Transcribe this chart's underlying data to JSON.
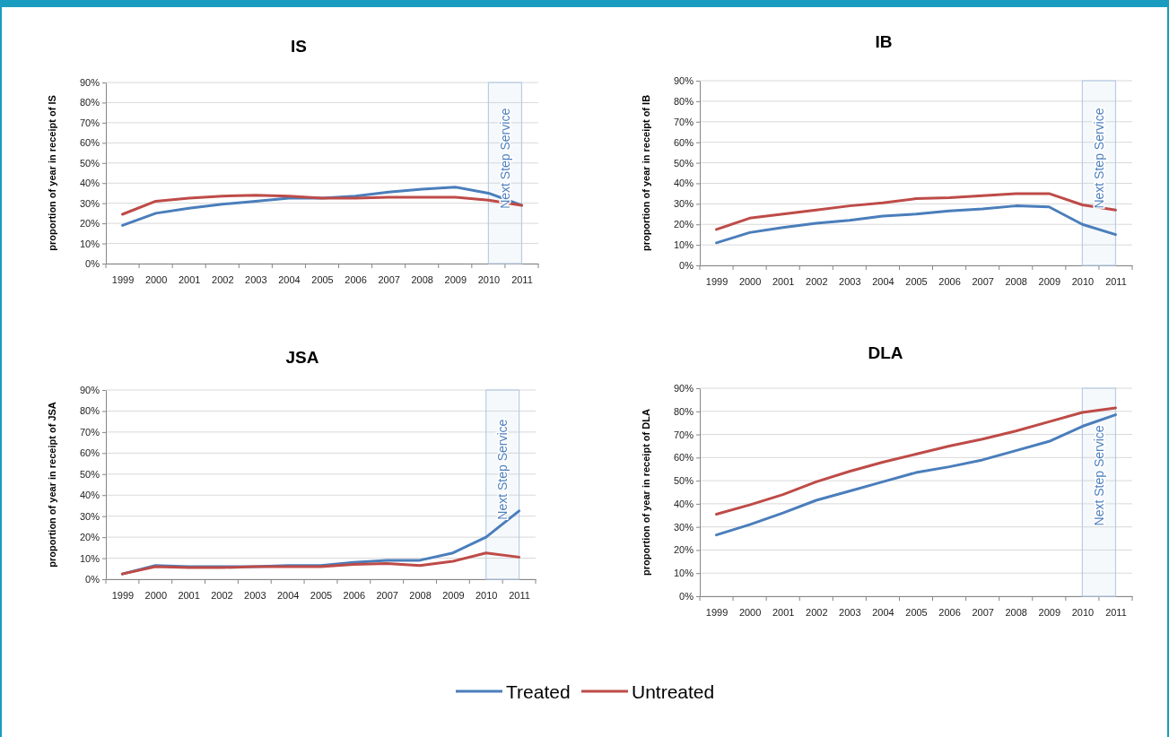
{
  "chart_data": [
    {
      "type": "line",
      "title": "IS",
      "ylabel": "proportion of year in receipt of IS",
      "categories": [
        "1999",
        "2000",
        "2001",
        "2002",
        "2003",
        "2004",
        "2005",
        "2006",
        "2007",
        "2008",
        "2009",
        "2010",
        "2011"
      ],
      "series": [
        {
          "color": "#4a7ebb",
          "values": [
            19,
            25,
            27.5,
            29.5,
            31,
            32.5,
            32.5,
            33.5,
            35.5,
            37,
            38,
            35,
            29
          ]
        },
        {
          "color": "#be4b48",
          "values": [
            24.5,
            31,
            32.5,
            33.5,
            34,
            33.5,
            32.5,
            32.5,
            33,
            33,
            33,
            31.5,
            29
          ]
        }
      ],
      "ylim": [
        0,
        90
      ],
      "yticks": [
        {
          "value": 0,
          "label": "0%"
        },
        {
          "value": 10,
          "label": "10%"
        },
        {
          "value": 20,
          "label": "20%"
        },
        {
          "value": 30,
          "label": "30%"
        },
        {
          "value": 40,
          "label": "40%"
        },
        {
          "value": 50,
          "label": "50%"
        },
        {
          "value": 60,
          "label": "60%"
        },
        {
          "value": 70,
          "label": "70%"
        },
        {
          "value": 80,
          "label": "80%"
        },
        {
          "value": 90,
          "label": "90%"
        }
      ],
      "grid": "y",
      "bands": [
        {
          "axis": "x",
          "from": "2010",
          "to": "2011",
          "label": "Next Step Service",
          "color": "#b9cde5"
        }
      ]
    },
    {
      "type": "line",
      "title": "IB",
      "ylabel": "proportion of year in receipt of IB",
      "categories": [
        "1999",
        "2000",
        "2001",
        "2002",
        "2003",
        "2004",
        "2005",
        "2006",
        "2007",
        "2008",
        "2009",
        "2010",
        "2011"
      ],
      "series": [
        {
          "color": "#4a7ebb",
          "values": [
            11,
            16,
            18.5,
            20.5,
            22,
            24,
            25,
            26.5,
            27.5,
            29,
            28.5,
            20,
            15
          ]
        },
        {
          "color": "#be4b48",
          "values": [
            17.5,
            23,
            25,
            27,
            29,
            30.5,
            32.5,
            33,
            34,
            35,
            35,
            29.5,
            27
          ]
        }
      ],
      "ylim": [
        0,
        90
      ],
      "yticks": [
        {
          "value": 0,
          "label": "0%"
        },
        {
          "value": 10,
          "label": "10%"
        },
        {
          "value": 20,
          "label": "20%"
        },
        {
          "value": 30,
          "label": "30%"
        },
        {
          "value": 40,
          "label": "40%"
        },
        {
          "value": 50,
          "label": "50%"
        },
        {
          "value": 60,
          "label": "60%"
        },
        {
          "value": 70,
          "label": "70%"
        },
        {
          "value": 80,
          "label": "80%"
        },
        {
          "value": 90,
          "label": "90%"
        }
      ],
      "grid": "y",
      "bands": [
        {
          "axis": "x",
          "from": "2010",
          "to": "2011",
          "label": "Next Step Service",
          "color": "#b9cde5"
        }
      ]
    },
    {
      "type": "line",
      "title": "JSA",
      "ylabel": "proportion of year in receipt of JSA",
      "categories": [
        "1999",
        "2000",
        "2001",
        "2002",
        "2003",
        "2004",
        "2005",
        "2006",
        "2007",
        "2008",
        "2009",
        "2010",
        "2011"
      ],
      "series": [
        {
          "color": "#4a7ebb",
          "values": [
            2.5,
            6.5,
            6,
            6,
            6,
            6.5,
            6.5,
            8,
            9,
            9,
            12.5,
            20,
            32.5
          ]
        },
        {
          "color": "#be4b48",
          "values": [
            2.5,
            6,
            5.5,
            5.5,
            6,
            6,
            6,
            7,
            7.5,
            6.5,
            8.5,
            12.5,
            10.5
          ]
        }
      ],
      "ylim": [
        0,
        90
      ],
      "yticks": [
        {
          "value": 0,
          "label": "0%"
        },
        {
          "value": 10,
          "label": "10%"
        },
        {
          "value": 20,
          "label": "20%"
        },
        {
          "value": 30,
          "label": "30%"
        },
        {
          "value": 40,
          "label": "40%"
        },
        {
          "value": 50,
          "label": "50%"
        },
        {
          "value": 60,
          "label": "60%"
        },
        {
          "value": 70,
          "label": "70%"
        },
        {
          "value": 80,
          "label": "80%"
        },
        {
          "value": 90,
          "label": "90%"
        }
      ],
      "grid": "y",
      "bands": [
        {
          "axis": "x",
          "from": "2010",
          "to": "2011",
          "label": "Next Step Service",
          "color": "#b9cde5"
        }
      ]
    },
    {
      "type": "line",
      "title": "DLA",
      "ylabel": "proportion of year in receipt of DLA",
      "categories": [
        "1999",
        "2000",
        "2001",
        "2002",
        "2003",
        "2004",
        "2005",
        "2006",
        "2007",
        "2008",
        "2009",
        "2010",
        "2011"
      ],
      "series": [
        {
          "name": "Treated",
          "color": "#4a7ebb",
          "values": [
            26.5,
            31,
            36,
            41.5,
            45.5,
            49.5,
            53.5,
            56,
            59,
            63,
            67,
            73.5,
            78.5
          ]
        },
        {
          "name": "Untreated",
          "color": "#be4b48",
          "values": [
            35.5,
            39.5,
            44,
            49.5,
            54,
            58,
            61.5,
            65,
            68,
            71.5,
            75.5,
            79.5,
            81.5
          ]
        }
      ],
      "ylim": [
        0,
        90
      ],
      "yticks": [
        {
          "value": 0,
          "label": "0%"
        },
        {
          "value": 10,
          "label": "10%"
        },
        {
          "value": 20,
          "label": "20%"
        },
        {
          "value": 30,
          "label": "30%"
        },
        {
          "value": 40,
          "label": "40%"
        },
        {
          "value": 50,
          "label": "50%"
        },
        {
          "value": 60,
          "label": "60%"
        },
        {
          "value": 70,
          "label": "70%"
        },
        {
          "value": 80,
          "label": "80%"
        },
        {
          "value": 90,
          "label": "90%"
        }
      ],
      "grid": "y",
      "legend": "bottom",
      "bands": [
        {
          "axis": "x",
          "from": "2010",
          "to": "2011",
          "label": "Next Step Service",
          "color": "#b9cde5"
        }
      ]
    }
  ]
}
